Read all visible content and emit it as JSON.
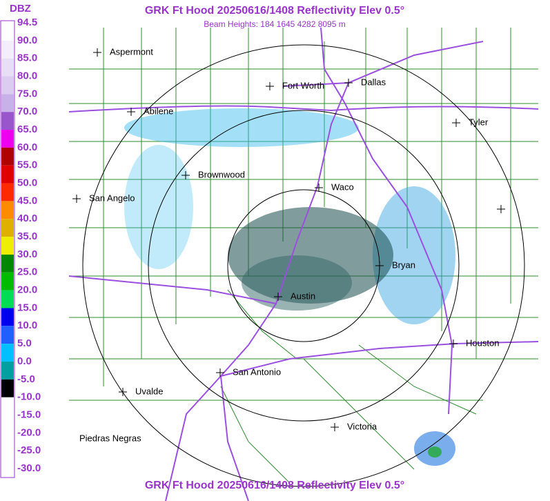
{
  "title": "GRK Ft Hood 20250616/1408 Reflectivity Elev 0.5°",
  "subtitle": "Beam Heights: 184 1645 4282 8095 m",
  "footer_title": "GRK Ft Hood 20250616/1408 Reflectivity Elev 0.5°",
  "legend": {
    "unit": "DBZ",
    "labels": [
      "94.5",
      "90.0",
      "85.0",
      "80.0",
      "75.0",
      "70.0",
      "65.0",
      "60.0",
      "55.0",
      "50.0",
      "45.0",
      "40.0",
      "35.0",
      "30.0",
      "25.0",
      "20.0",
      "15.0",
      "10.0",
      "5.0",
      "0.0",
      "-5.0",
      "-10.0",
      "-15.0",
      "-20.0",
      "-25.0",
      "-30.0"
    ]
  },
  "cities": [
    "Aspermont",
    "Fort Worth",
    "Dallas",
    "Abilene",
    "Tyler",
    "Brownwood",
    "Waco",
    "San Angelo",
    "Bryan",
    "Austin",
    "Houston",
    "San Antonio",
    "Uvalde",
    "Victoria",
    "Piedras Negras"
  ]
}
